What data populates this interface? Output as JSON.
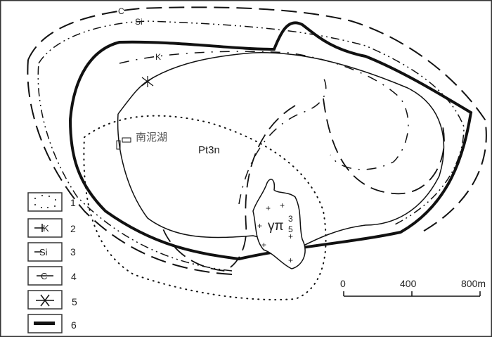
{
  "labels": {
    "place_name": "南泥湖",
    "formation": "Pt3n",
    "intrusion": "γπ",
    "intrusion_sup": "3",
    "intrusion_sub": "5",
    "mark_c": "C",
    "mark_si": "Si",
    "mark_k": "K"
  },
  "legend": [
    {
      "num": "1",
      "symbol": "dotted-boundary"
    },
    {
      "num": "2",
      "symbol": "k-line",
      "glyph": "K"
    },
    {
      "num": "3",
      "symbol": "si-line",
      "glyph": "Si"
    },
    {
      "num": "4",
      "symbol": "c-line",
      "glyph": "C"
    },
    {
      "num": "5",
      "symbol": "cross-line"
    },
    {
      "num": "6",
      "symbol": "thick-line"
    }
  ],
  "scale_bar": {
    "ticks": [
      "0",
      "400",
      "800m"
    ]
  }
}
